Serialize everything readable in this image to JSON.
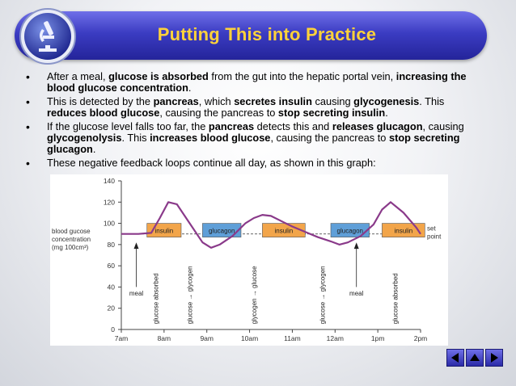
{
  "title": "Putting This into Practice",
  "bullets": [
    [
      {
        "t": "After a meal, ",
        "b": false
      },
      {
        "t": "glucose is absorbed",
        "b": true
      },
      {
        "t": " from the gut into the hepatic portal vein, ",
        "b": false
      },
      {
        "t": "increasing the blood glucose concentration",
        "b": true
      },
      {
        "t": ".",
        "b": false
      }
    ],
    [
      {
        "t": "This is detected by the ",
        "b": false
      },
      {
        "t": "pancreas",
        "b": true
      },
      {
        "t": ", which ",
        "b": false
      },
      {
        "t": "secretes insulin",
        "b": true
      },
      {
        "t": " causing ",
        "b": false
      },
      {
        "t": "glycogenesis",
        "b": true
      },
      {
        "t": ". This ",
        "b": false
      },
      {
        "t": "reduces blood glucose",
        "b": true
      },
      {
        "t": ", causing the pancreas to ",
        "b": false
      },
      {
        "t": "stop secreting insulin",
        "b": true
      },
      {
        "t": ".",
        "b": false
      }
    ],
    [
      {
        "t": "If the glucose level falls too far, the ",
        "b": false
      },
      {
        "t": "pancreas",
        "b": true
      },
      {
        "t": " detects this and ",
        "b": false
      },
      {
        "t": "releases glucagon",
        "b": true
      },
      {
        "t": ", causing ",
        "b": false
      },
      {
        "t": "glycogenolysis",
        "b": true
      },
      {
        "t": ". This ",
        "b": false
      },
      {
        "t": "increases blood glucose",
        "b": true
      },
      {
        "t": ", causing the pancreas to ",
        "b": false
      },
      {
        "t": "stop secreting glucagon",
        "b": true
      },
      {
        "t": ".",
        "b": false
      }
    ],
    [
      {
        "t": "These negative feedback loops continue all day, as shown in this graph:",
        "b": false
      }
    ]
  ],
  "graph": {
    "ylabel": [
      "blood gucose",
      "concentration",
      "(mg 100cm³)"
    ],
    "y_ticks": [
      "0",
      "20",
      "40",
      "60",
      "80",
      "100",
      "120",
      "140"
    ],
    "x_ticks": [
      "7am",
      "8am",
      "9am",
      "10am",
      "11am",
      "12am",
      "1pm",
      "2pm"
    ],
    "set_point_label": [
      "set",
      "point"
    ],
    "set_point": 90,
    "curve_x_hours": [
      7.0,
      7.4,
      7.7,
      7.9,
      8.1,
      8.3,
      8.6,
      8.9,
      9.1,
      9.3,
      9.6,
      9.9,
      10.1,
      10.3,
      10.5,
      10.8,
      11.0,
      11.3,
      11.6,
      11.9,
      12.1,
      12.3,
      12.6,
      12.9,
      13.1,
      13.3,
      13.6,
      13.9,
      14.0
    ],
    "curve_values": [
      90,
      90,
      91,
      105,
      120,
      118,
      100,
      82,
      77,
      80,
      88,
      100,
      105,
      108,
      107,
      101,
      97,
      92,
      87,
      83,
      80,
      82,
      88,
      99,
      113,
      120,
      110,
      96,
      90
    ],
    "hormone_boxes": [
      {
        "label": "insulin",
        "color": "#f2a54a",
        "start": 7.6,
        "end": 8.4
      },
      {
        "label": "glucagon",
        "color": "#5f9fd8",
        "start": 8.9,
        "end": 9.8
      },
      {
        "label": "insulin",
        "color": "#f2a54a",
        "start": 10.3,
        "end": 11.3
      },
      {
        "label": "glucagon",
        "color": "#5f9fd8",
        "start": 11.9,
        "end": 12.8
      },
      {
        "label": "insulin",
        "color": "#f2a54a",
        "start": 13.1,
        "end": 14.1
      }
    ],
    "vertical_labels": [
      {
        "text": "glucose absorbed",
        "at": 7.8
      },
      {
        "text": "glucose → glycogen",
        "at": 8.6
      },
      {
        "text": "glycogen → glucose",
        "at": 10.1
      },
      {
        "text": "glucose → glycogen",
        "at": 11.7
      },
      {
        "text": "glucose absorbed",
        "at": 13.4
      }
    ],
    "meal_labels": [
      {
        "text": "meal",
        "at": 7.35
      },
      {
        "text": "meal",
        "at": 12.5
      }
    ]
  },
  "nav": {
    "back_icon": "triangle-left-icon",
    "home_icon": "triangle-up-icon",
    "forward_icon": "triangle-right-icon"
  },
  "colors": {
    "title": "#ffd23a",
    "bar_start": "#6f6fe8",
    "bar_end": "#24249a",
    "curve": "#8a3a8a",
    "insulin": "#f2a54a",
    "glucagon": "#5f9fd8"
  }
}
